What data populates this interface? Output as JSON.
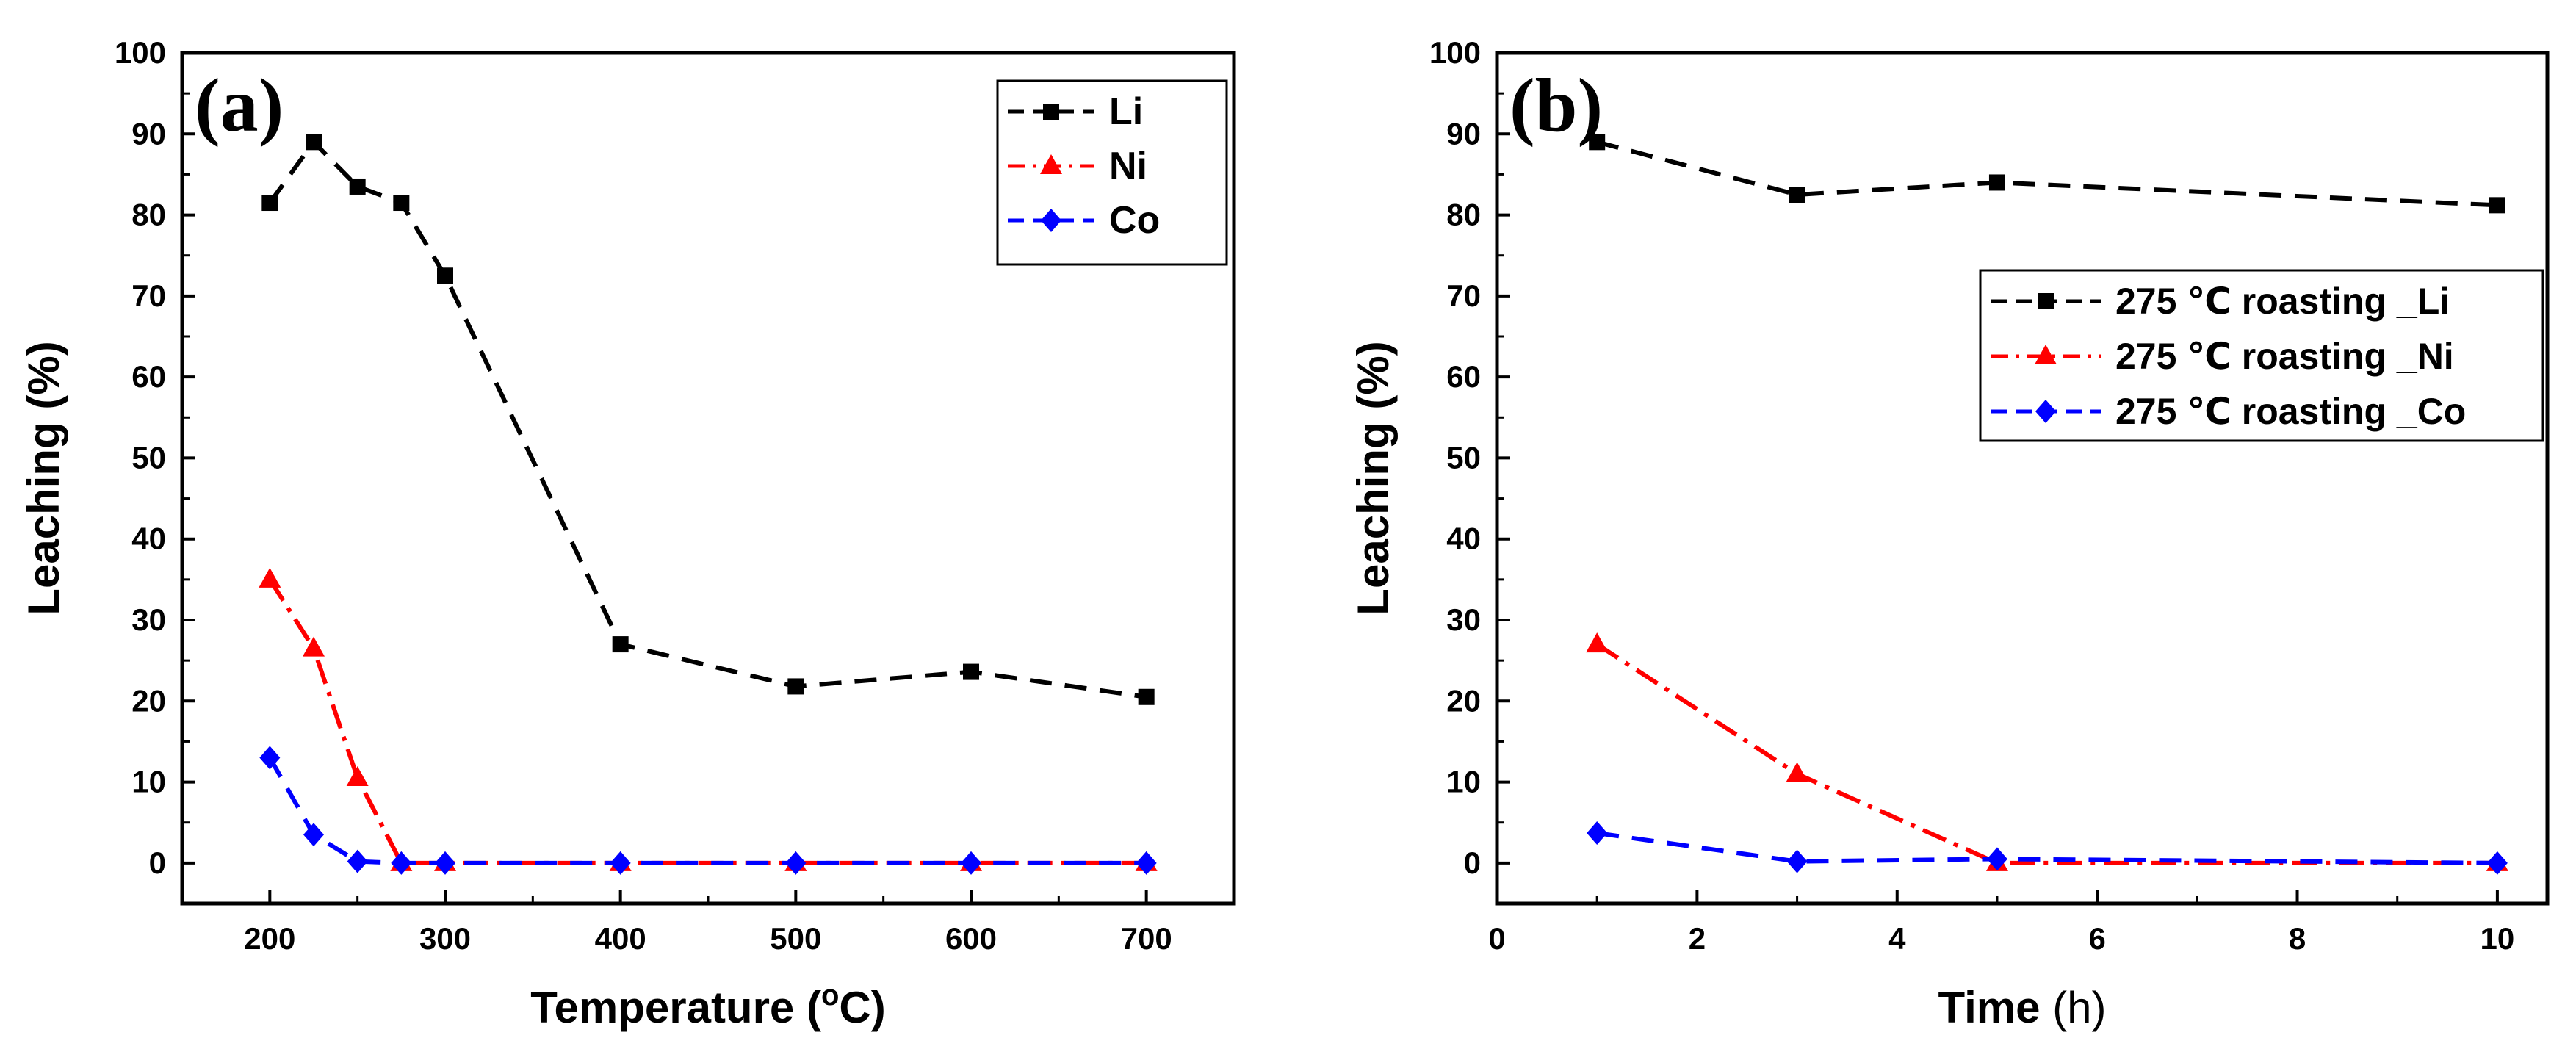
{
  "chart_data": [
    {
      "type": "line",
      "panel_label": "(a)",
      "xlabel": "Temperature (",
      "xlabel_sup": "o",
      "xlabel_end": "C)",
      "ylabel": "Leaching (%)",
      "xlim": [
        150,
        750
      ],
      "ylim": [
        -5,
        100
      ],
      "xticks": [
        200,
        300,
        400,
        500,
        600,
        700
      ],
      "yticks": [
        0,
        10,
        20,
        30,
        40,
        50,
        60,
        70,
        80,
        90,
        100
      ],
      "legend_position": "top-right",
      "series": [
        {
          "name": "Li",
          "color": "#000000",
          "marker": "square",
          "dash": "dash",
          "x": [
            200,
            225,
            250,
            275,
            300,
            400,
            500,
            600,
            700
          ],
          "y": [
            81.5,
            89,
            83.5,
            81.5,
            72.5,
            27,
            21.8,
            23.6,
            20.5
          ]
        },
        {
          "name": "Ni",
          "color": "#ff0000",
          "marker": "triangle",
          "dash": "dashdot",
          "x": [
            200,
            225,
            250,
            275,
            300,
            400,
            500,
            600,
            700
          ],
          "y": [
            35,
            26.5,
            10.5,
            0,
            0,
            0,
            0,
            0,
            0
          ]
        },
        {
          "name": "Co",
          "color": "#0000ff",
          "marker": "diamond",
          "dash": "dash",
          "x": [
            200,
            225,
            250,
            275,
            300,
            400,
            500,
            600,
            700
          ],
          "y": [
            13,
            3.5,
            0.2,
            0,
            0,
            0,
            0,
            0,
            0
          ]
        }
      ]
    },
    {
      "type": "line",
      "panel_label": "(b)",
      "xlabel": "Time",
      "xlabel_end": " (h)",
      "ylabel": "Leaching (%)",
      "xlim": [
        0,
        10.5
      ],
      "ylim": [
        -5,
        100
      ],
      "xticks": [
        0,
        2,
        4,
        6,
        8,
        10
      ],
      "yticks": [
        0,
        10,
        20,
        30,
        40,
        50,
        60,
        70,
        80,
        90,
        100
      ],
      "legend_position": "upper-right",
      "series": [
        {
          "name": "275 ℃ roasting _Li",
          "color": "#000000",
          "marker": "square",
          "dash": "dash",
          "x": [
            1,
            3,
            5,
            10
          ],
          "y": [
            89,
            82.5,
            84,
            81.2
          ]
        },
        {
          "name": "275 ℃ roasting _Ni",
          "color": "#ff0000",
          "marker": "triangle",
          "dash": "dashdot",
          "x": [
            1,
            3,
            5,
            10
          ],
          "y": [
            27,
            11,
            0,
            0
          ]
        },
        {
          "name": "275 ℃ roasting _Co",
          "color": "#0000ff",
          "marker": "diamond",
          "dash": "dash",
          "x": [
            1,
            3,
            5,
            10
          ],
          "y": [
            3.7,
            0.2,
            0.5,
            0
          ]
        }
      ]
    }
  ]
}
